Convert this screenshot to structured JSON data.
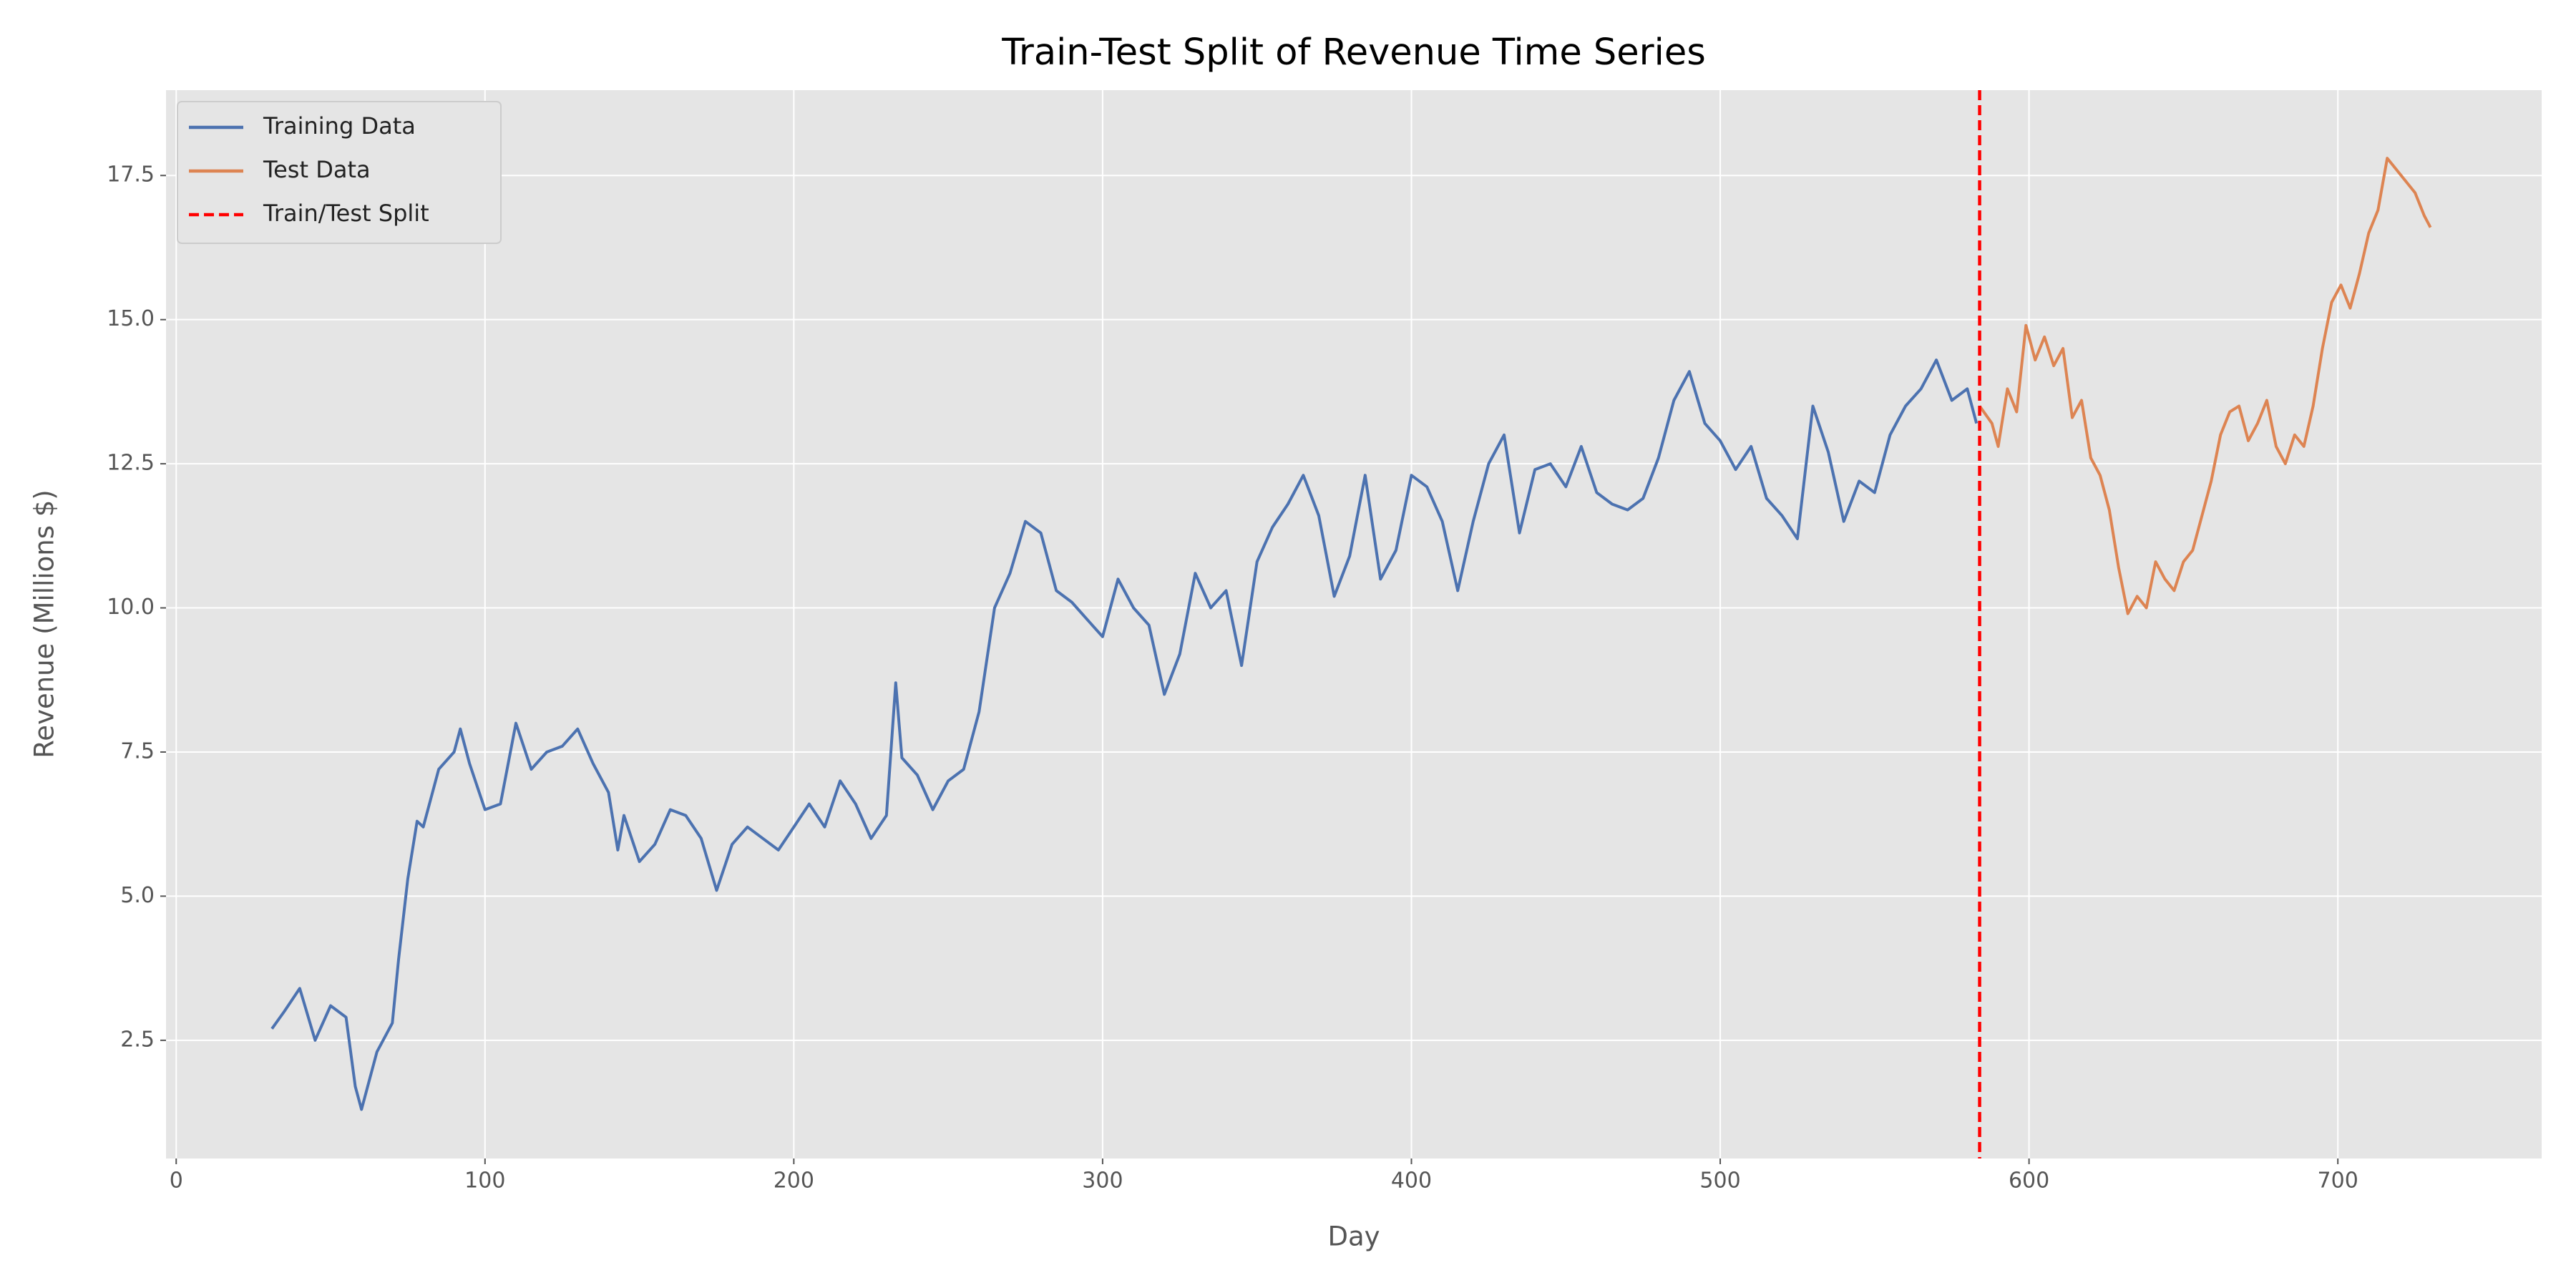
{
  "chart_data": {
    "type": "line",
    "title": "Train-Test Split of Revenue Time Series",
    "x_label": "Day",
    "y_label": "Revenue (Millions $)",
    "xlim": [
      -3.3,
      766
    ],
    "ylim": [
      0.45,
      18.98
    ],
    "xticks": [
      0,
      100,
      200,
      300,
      400,
      500,
      600,
      700
    ],
    "yticks": [
      2.5,
      {
        "value": 5,
        "label": "5.0"
      },
      7.5,
      {
        "value": 10,
        "label": "10.0"
      },
      12.5,
      {
        "value": 15,
        "label": "15.0"
      },
      17.5
    ],
    "grid": true,
    "legend": "upper left",
    "series": [
      {
        "name": "Training Data",
        "color": "#4c72b0",
        "x": [
          31,
          35,
          40,
          45,
          50,
          55,
          58,
          60,
          65,
          70,
          72,
          75,
          78,
          80,
          85,
          90,
          92,
          95,
          100,
          105,
          110,
          115,
          120,
          125,
          130,
          135,
          140,
          143,
          145,
          150,
          155,
          160,
          165,
          170,
          175,
          180,
          185,
          190,
          195,
          200,
          205,
          210,
          215,
          220,
          225,
          230,
          233,
          235,
          240,
          245,
          250,
          255,
          260,
          265,
          270,
          275,
          280,
          285,
          290,
          295,
          300,
          305,
          310,
          315,
          320,
          325,
          330,
          335,
          340,
          345,
          350,
          355,
          360,
          365,
          370,
          375,
          380,
          385,
          390,
          395,
          400,
          405,
          410,
          415,
          420,
          425,
          430,
          435,
          440,
          445,
          450,
          455,
          460,
          465,
          470,
          475,
          480,
          485,
          490,
          495,
          500,
          505,
          510,
          515,
          520,
          525,
          530,
          535,
          540,
          545,
          550,
          555,
          560,
          565,
          570,
          575,
          580,
          583
        ],
        "values": [
          2.7,
          3.0,
          3.4,
          2.5,
          3.1,
          2.9,
          1.7,
          1.3,
          2.3,
          2.8,
          3.9,
          5.3,
          6.3,
          6.2,
          7.2,
          7.5,
          7.9,
          7.3,
          6.5,
          6.6,
          8.0,
          7.2,
          7.5,
          7.6,
          7.9,
          7.3,
          6.8,
          5.8,
          6.4,
          5.6,
          5.9,
          6.5,
          6.4,
          6.0,
          5.1,
          5.9,
          6.2,
          6.0,
          5.8,
          6.2,
          6.6,
          6.2,
          7.0,
          6.6,
          6.0,
          6.4,
          8.7,
          7.4,
          7.1,
          6.5,
          7.0,
          7.2,
          8.2,
          10.0,
          10.6,
          11.5,
          11.3,
          10.3,
          10.1,
          9.8,
          9.5,
          10.5,
          10.0,
          9.7,
          8.5,
          9.2,
          10.6,
          10.0,
          10.3,
          9.0,
          10.8,
          11.4,
          11.8,
          12.3,
          11.6,
          10.2,
          10.9,
          12.3,
          10.5,
          11.0,
          12.3,
          12.1,
          11.5,
          10.3,
          11.5,
          12.5,
          13.0,
          11.3,
          12.4,
          12.5,
          12.1,
          12.8,
          12.0,
          11.8,
          11.7,
          11.9,
          12.6,
          13.6,
          14.1,
          13.2,
          12.9,
          12.4,
          12.8,
          11.9,
          11.6,
          11.2,
          13.5,
          12.7,
          11.5,
          12.2,
          12.0,
          13.0,
          13.5,
          13.8,
          14.3,
          13.6,
          13.8,
          13.2
        ]
      },
      {
        "name": "Test Data",
        "color": "#dd8452",
        "x": [
          584,
          588,
          590,
          593,
          596,
          599,
          602,
          605,
          608,
          611,
          614,
          617,
          620,
          623,
          626,
          629,
          632,
          635,
          638,
          641,
          644,
          647,
          650,
          653,
          656,
          659,
          662,
          665,
          668,
          671,
          674,
          677,
          680,
          683,
          686,
          689,
          692,
          695,
          698,
          701,
          704,
          707,
          710,
          713,
          716,
          719,
          722,
          725,
          728,
          730
        ],
        "values": [
          13.5,
          13.2,
          12.8,
          13.8,
          13.4,
          14.9,
          14.3,
          14.7,
          14.2,
          14.5,
          13.3,
          13.6,
          12.6,
          12.3,
          11.7,
          10.7,
          9.9,
          10.2,
          10.0,
          10.8,
          10.5,
          10.3,
          10.8,
          11.0,
          11.6,
          12.2,
          13.0,
          13.4,
          13.5,
          12.9,
          13.2,
          13.6,
          12.8,
          12.5,
          13.0,
          12.8,
          13.5,
          14.5,
          15.3,
          15.6,
          15.2,
          15.8,
          16.5,
          16.9,
          17.8,
          17.6,
          17.4,
          17.2,
          16.8,
          16.6
        ]
      }
    ],
    "split": {
      "name": "Train/Test Split",
      "x": 584,
      "color": "#ff0000",
      "style": "dashed"
    }
  }
}
